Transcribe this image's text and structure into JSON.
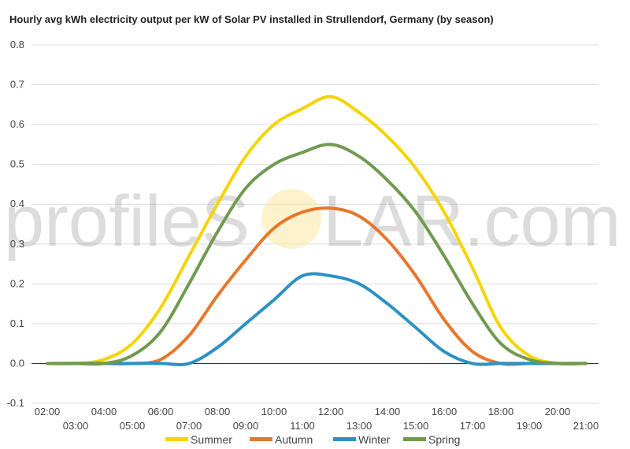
{
  "chart_data": {
    "type": "line",
    "title": "Hourly avg kWh electricity output per kW of Solar PV installed in Strullendorf, Germany (by season)",
    "xlabel": "",
    "ylabel": "",
    "ylim": [
      -0.1,
      0.8
    ],
    "yticks": [
      "-0.1",
      "0.0",
      "0.1",
      "0.2",
      "0.3",
      "0.4",
      "0.5",
      "0.6",
      "0.7",
      "0.8"
    ],
    "xticks_upper": [
      "02:00",
      "04:00",
      "06:00",
      "08:00",
      "10:00",
      "12:00",
      "14:00",
      "16:00",
      "18:00",
      "20:00"
    ],
    "xticks_lower": [
      "03:00",
      "05:00",
      "07:00",
      "09:00",
      "11:00",
      "13:00",
      "15:00",
      "17:00",
      "19:00",
      "21:00"
    ],
    "x": [
      "02:00",
      "03:00",
      "04:00",
      "05:00",
      "06:00",
      "07:00",
      "08:00",
      "09:00",
      "10:00",
      "11:00",
      "12:00",
      "13:00",
      "14:00",
      "15:00",
      "16:00",
      "17:00",
      "18:00",
      "19:00",
      "20:00",
      "21:00"
    ],
    "grid": true,
    "legend_position": "bottom",
    "series": [
      {
        "name": "Summer",
        "color": "#f5d400",
        "values": [
          0.0,
          0.0,
          0.01,
          0.05,
          0.14,
          0.27,
          0.4,
          0.52,
          0.6,
          0.64,
          0.67,
          0.63,
          0.57,
          0.49,
          0.38,
          0.24,
          0.09,
          0.02,
          0.0,
          0.0
        ]
      },
      {
        "name": "Autumn",
        "color": "#e8762c",
        "values": [
          0.0,
          0.0,
          0.0,
          0.0,
          0.01,
          0.07,
          0.17,
          0.26,
          0.34,
          0.38,
          0.39,
          0.37,
          0.31,
          0.22,
          0.11,
          0.03,
          0.0,
          0.0,
          0.0,
          0.0
        ]
      },
      {
        "name": "Winter",
        "color": "#2d91c2",
        "values": [
          0.0,
          0.0,
          0.0,
          0.0,
          0.0,
          0.0,
          0.04,
          0.1,
          0.16,
          0.22,
          0.22,
          0.2,
          0.15,
          0.09,
          0.03,
          0.0,
          0.0,
          0.0,
          0.0,
          0.0
        ]
      },
      {
        "name": "Spring",
        "color": "#6f9a4f",
        "values": [
          0.0,
          0.0,
          0.0,
          0.02,
          0.08,
          0.2,
          0.33,
          0.44,
          0.5,
          0.53,
          0.55,
          0.52,
          0.46,
          0.38,
          0.27,
          0.15,
          0.05,
          0.01,
          0.0,
          0.0
        ]
      }
    ]
  },
  "watermark": {
    "text_left": "profileS",
    "text_right": "LAR.com",
    "sun_color": "#fbe9a8"
  }
}
